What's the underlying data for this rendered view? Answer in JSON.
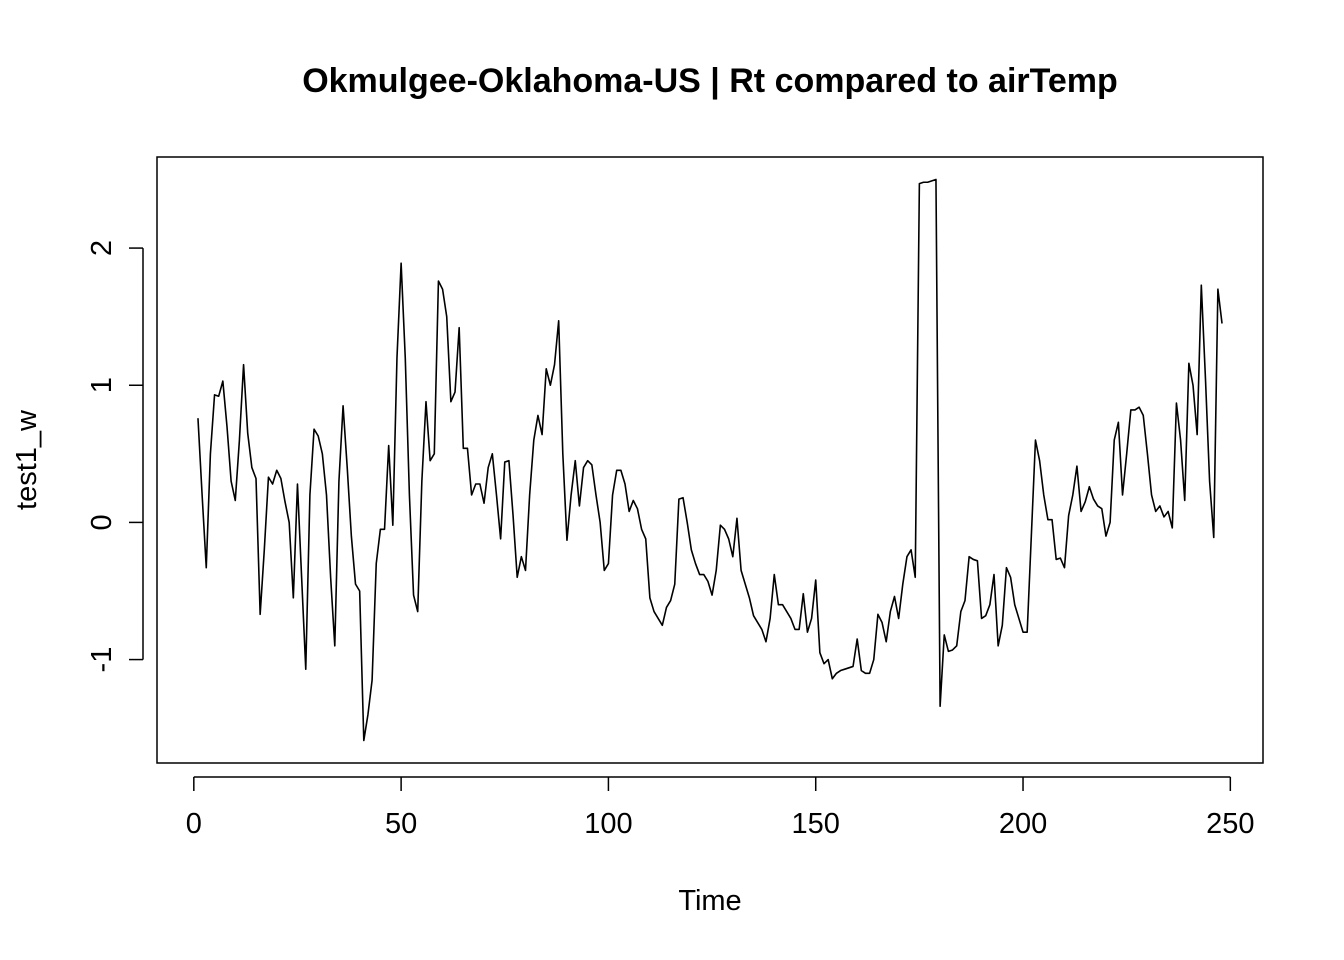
{
  "chart_data": {
    "type": "line",
    "title": "Okmulgee-Oklahoma-US | Rt compared to airTemp",
    "x_label": "Time",
    "y_label": "test1_w",
    "x": [
      1,
      2,
      3,
      4,
      5,
      6,
      7,
      8,
      9,
      10,
      11,
      12,
      13,
      14,
      15,
      16,
      17,
      18,
      19,
      20,
      21,
      22,
      23,
      24,
      25,
      26,
      27,
      28,
      29,
      30,
      31,
      32,
      33,
      34,
      35,
      36,
      37,
      38,
      39,
      40,
      41,
      42,
      43,
      44,
      45,
      46,
      47,
      48,
      49,
      50,
      51,
      52,
      53,
      54,
      55,
      56,
      57,
      58,
      59,
      60,
      61,
      62,
      63,
      64,
      65,
      66,
      67,
      68,
      69,
      70,
      71,
      72,
      73,
      74,
      75,
      76,
      77,
      78,
      79,
      80,
      81,
      82,
      83,
      84,
      85,
      86,
      87,
      88,
      89,
      90,
      91,
      92,
      93,
      94,
      95,
      96,
      97,
      98,
      99,
      100,
      101,
      102,
      103,
      104,
      105,
      106,
      107,
      108,
      109,
      110,
      111,
      112,
      113,
      114,
      115,
      116,
      117,
      118,
      119,
      120,
      121,
      122,
      123,
      124,
      125,
      126,
      127,
      128,
      129,
      130,
      131,
      132,
      133,
      134,
      135,
      136,
      137,
      138,
      139,
      140,
      141,
      142,
      143,
      144,
      145,
      146,
      147,
      148,
      149,
      150,
      151,
      152,
      153,
      154,
      155,
      156,
      157,
      158,
      159,
      160,
      161,
      162,
      163,
      164,
      165,
      166,
      167,
      168,
      169,
      170,
      171,
      172,
      173,
      174,
      175,
      176,
      177,
      178,
      179,
      180,
      181,
      182,
      183,
      184,
      185,
      186,
      187,
      188,
      189,
      190,
      191,
      192,
      193,
      194,
      195,
      196,
      197,
      198,
      199,
      200,
      201,
      202,
      203,
      204,
      205,
      206,
      207,
      208,
      209,
      210,
      211,
      212,
      213,
      214,
      215,
      216,
      217,
      218,
      219,
      220,
      221,
      222,
      223,
      224,
      225,
      226,
      227,
      228,
      229,
      230,
      231,
      232,
      233,
      234,
      235,
      236,
      237,
      238,
      239,
      240,
      241,
      242,
      243,
      244,
      245,
      246,
      247,
      248
    ],
    "series": [
      {
        "color": "#000000",
        "values": [
          0.76,
          0.2,
          -0.33,
          0.5,
          0.93,
          0.92,
          1.03,
          0.7,
          0.3,
          0.16,
          0.6,
          1.15,
          0.65,
          0.4,
          0.32,
          -0.67,
          -0.2,
          0.33,
          0.28,
          0.38,
          0.32,
          0.15,
          0.0,
          -0.55,
          0.28,
          -0.4,
          -1.07,
          0.2,
          0.68,
          0.63,
          0.5,
          0.2,
          -0.4,
          -0.9,
          0.3,
          0.85,
          0.4,
          -0.1,
          -0.45,
          -0.5,
          -1.59,
          -1.4,
          -1.15,
          -0.3,
          -0.05,
          -0.05,
          0.56,
          -0.02,
          1.2,
          1.89,
          1.2,
          0.2,
          -0.53,
          -0.65,
          0.3,
          0.88,
          0.45,
          0.5,
          1.76,
          1.7,
          1.5,
          0.88,
          0.95,
          1.42,
          0.54,
          0.54,
          0.2,
          0.28,
          0.28,
          0.14,
          0.4,
          0.5,
          0.2,
          -0.12,
          0.44,
          0.45,
          0.05,
          -0.4,
          -0.25,
          -0.35,
          0.2,
          0.6,
          0.78,
          0.64,
          1.12,
          1.0,
          1.15,
          1.47,
          0.5,
          -0.13,
          0.2,
          0.45,
          0.12,
          0.4,
          0.45,
          0.42,
          0.2,
          0.0,
          -0.35,
          -0.3,
          0.2,
          0.38,
          0.38,
          0.28,
          0.08,
          0.16,
          0.1,
          -0.05,
          -0.12,
          -0.55,
          -0.65,
          -0.7,
          -0.75,
          -0.62,
          -0.57,
          -0.45,
          0.17,
          0.18,
          0.0,
          -0.2,
          -0.3,
          -0.38,
          -0.38,
          -0.43,
          -0.53,
          -0.35,
          -0.02,
          -0.05,
          -0.12,
          -0.25,
          0.03,
          -0.35,
          -0.45,
          -0.55,
          -0.68,
          -0.73,
          -0.78,
          -0.87,
          -0.7,
          -0.38,
          -0.6,
          -0.6,
          -0.65,
          -0.7,
          -0.78,
          -0.78,
          -0.52,
          -0.8,
          -0.7,
          -0.42,
          -0.95,
          -1.03,
          -1.0,
          -1.14,
          -1.1,
          -1.08,
          -1.07,
          -1.06,
          -1.05,
          -0.85,
          -1.08,
          -1.1,
          -1.1,
          -1.0,
          -0.67,
          -0.73,
          -0.87,
          -0.65,
          -0.54,
          -0.7,
          -0.45,
          -0.25,
          -0.2,
          -0.4,
          2.47,
          2.48,
          2.48,
          2.49,
          2.5,
          -1.34,
          -0.82,
          -0.94,
          -0.93,
          -0.9,
          -0.65,
          -0.57,
          -0.25,
          -0.27,
          -0.28,
          -0.7,
          -0.68,
          -0.6,
          -0.38,
          -0.9,
          -0.75,
          -0.33,
          -0.4,
          -0.6,
          -0.7,
          -0.8,
          -0.8,
          -0.1,
          0.6,
          0.45,
          0.2,
          0.02,
          0.02,
          -0.27,
          -0.26,
          -0.33,
          0.05,
          0.2,
          0.41,
          0.08,
          0.15,
          0.26,
          0.17,
          0.12,
          0.1,
          -0.1,
          0.0,
          0.6,
          0.73,
          0.2,
          0.5,
          0.82,
          0.82,
          0.84,
          0.78,
          0.5,
          0.2,
          0.08,
          0.12,
          0.04,
          0.08,
          -0.04,
          0.87,
          0.6,
          0.16,
          1.16,
          1.0,
          0.64,
          1.73,
          1.05,
          0.3,
          -0.11,
          1.7,
          1.45
        ]
      }
    ],
    "xlim": [
      -8.88,
      257.88
    ],
    "ylim": [
      -1.754,
      2.664
    ],
    "xticks": [
      0,
      50,
      100,
      150,
      200,
      250
    ],
    "yticks": [
      -1,
      0,
      1,
      2
    ]
  }
}
